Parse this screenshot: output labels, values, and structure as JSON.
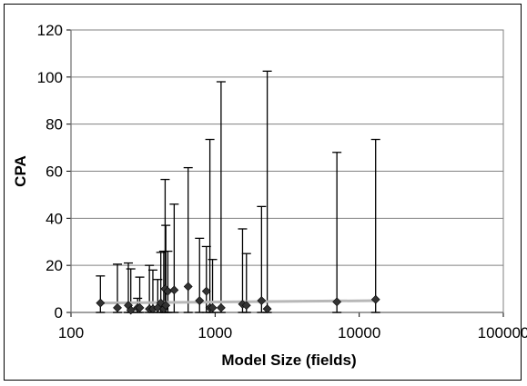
{
  "chart_data": {
    "type": "scatter",
    "title": "",
    "xlabel": "Model Size (fields)",
    "ylabel": "CPA",
    "x_scale": "log",
    "xlim": [
      100,
      100000
    ],
    "ylim": [
      0,
      120
    ],
    "x_ticks": [
      "100",
      "1000",
      "10000",
      "100000"
    ],
    "y_ticks": [
      "0",
      "20",
      "40",
      "60",
      "80",
      "100",
      "120"
    ],
    "grid": "horizontal",
    "legend": "none",
    "colors": {
      "points": "#333333",
      "trend": "#b8b8b8",
      "plot_border": "#808080",
      "gridline": "#808080"
    },
    "series": [
      {
        "values": [
          {
            "x": 160,
            "y": 4,
            "low": 0,
            "high": 15.5
          },
          {
            "x": 210,
            "y": 2,
            "low": 0,
            "high": 20.5
          },
          {
            "x": 250,
            "y": 3,
            "low": 0,
            "high": 21
          },
          {
            "x": 260,
            "y": 1,
            "low": 0,
            "high": 18.5
          },
          {
            "x": 290,
            "y": 2,
            "low": 0,
            "high": 6
          },
          {
            "x": 300,
            "y": 2,
            "low": 0,
            "high": 15
          },
          {
            "x": 350,
            "y": 1.5,
            "low": 0,
            "high": 20
          },
          {
            "x": 370,
            "y": 1.5,
            "low": 0,
            "high": 18
          },
          {
            "x": 400,
            "y": 2,
            "low": 0,
            "high": 14
          },
          {
            "x": 420,
            "y": 4,
            "low": 0,
            "high": 25.5
          },
          {
            "x": 440,
            "y": 1.5,
            "low": 0,
            "high": 26
          },
          {
            "x": 450,
            "y": 10,
            "low": 0,
            "high": 56.5
          },
          {
            "x": 455,
            "y": 3,
            "low": 0,
            "high": 37
          },
          {
            "x": 470,
            "y": 9,
            "low": 0,
            "high": 26
          },
          {
            "x": 520,
            "y": 9.5,
            "low": 0,
            "high": 46
          },
          {
            "x": 650,
            "y": 11,
            "low": 0,
            "high": 61.5
          },
          {
            "x": 780,
            "y": 5,
            "low": 0,
            "high": 31.5
          },
          {
            "x": 870,
            "y": 9,
            "low": 0,
            "high": 28
          },
          {
            "x": 920,
            "y": 2,
            "low": 0,
            "high": 73.5
          },
          {
            "x": 960,
            "y": 2,
            "low": 0,
            "high": 22.5
          },
          {
            "x": 1100,
            "y": 2,
            "low": 0,
            "high": 98
          },
          {
            "x": 1550,
            "y": 3.5,
            "low": 0,
            "high": 35.5
          },
          {
            "x": 1650,
            "y": 3,
            "low": 0,
            "high": 25
          },
          {
            "x": 2100,
            "y": 5,
            "low": 0,
            "high": 45
          },
          {
            "x": 2300,
            "y": 1.5,
            "low": 0,
            "high": 102.5
          },
          {
            "x": 7000,
            "y": 4.5,
            "low": 0,
            "high": 68
          },
          {
            "x": 13000,
            "y": 5.5,
            "low": 0,
            "high": 73.5
          }
        ]
      }
    ],
    "trendline": [
      {
        "x": 160,
        "y": 4
      },
      {
        "x": 13000,
        "y": 5
      }
    ]
  }
}
